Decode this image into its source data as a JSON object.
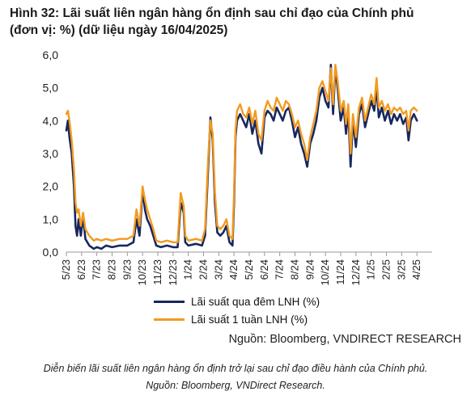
{
  "title_line1": "Hình 32: Lãi suất liên ngân hàng ổn định sau chỉ đạo của Chính phủ",
  "title_line2": "(đơn vị: %) (dữ liệu ngày 16/04/2025)",
  "source_text": "Nguồn: Bloomberg, VNDIRECT RESEARCH",
  "caption_line1": "Diễn biến lãi suất liên ngân hàng ổn định trở lại sau chỉ đạo điều hành của Chính phủ.",
  "caption_line2": "Nguồn: Bloomberg, VNDirect Research.",
  "colors": {
    "series1": "#17275e",
    "series2": "#f39a1f",
    "axis": "#999999"
  },
  "chart_data": {
    "type": "line",
    "ylim": [
      0,
      6
    ],
    "yticks": [
      "0,0",
      "1,0",
      "2,0",
      "3,0",
      "4,0",
      "5,0",
      "6,0"
    ],
    "xlim": [
      0,
      24
    ],
    "xticks": [
      "5/23",
      "6/23",
      "7/23",
      "8/23",
      "9/23",
      "10/23",
      "11/23",
      "12/23",
      "1/24",
      "2/24",
      "3/24",
      "4/24",
      "5/24",
      "6/24",
      "7/24",
      "8/24",
      "9/24",
      "10/24",
      "11/24",
      "12/24",
      "1/25",
      "2/25",
      "3/25",
      "4/25"
    ],
    "series": [
      {
        "name": "Lãi suất qua đêm LNH (%)",
        "color": "#17275e",
        "points": [
          [
            0,
            3.7
          ],
          [
            0.1,
            4.0
          ],
          [
            0.2,
            3.5
          ],
          [
            0.35,
            3.0
          ],
          [
            0.5,
            2.0
          ],
          [
            0.6,
            0.8
          ],
          [
            0.7,
            0.5
          ],
          [
            0.8,
            1.0
          ],
          [
            0.95,
            0.5
          ],
          [
            1.1,
            1.1
          ],
          [
            1.25,
            0.4
          ],
          [
            1.5,
            0.2
          ],
          [
            1.8,
            0.1
          ],
          [
            2.0,
            0.15
          ],
          [
            2.3,
            0.1
          ],
          [
            2.6,
            0.2
          ],
          [
            3.0,
            0.15
          ],
          [
            3.5,
            0.2
          ],
          [
            4.0,
            0.2
          ],
          [
            4.4,
            0.3
          ],
          [
            4.6,
            1.0
          ],
          [
            4.8,
            0.5
          ],
          [
            5.0,
            1.9
          ],
          [
            5.15,
            1.3
          ],
          [
            5.3,
            1.0
          ],
          [
            5.5,
            0.8
          ],
          [
            5.7,
            0.5
          ],
          [
            5.9,
            0.2
          ],
          [
            6.2,
            0.15
          ],
          [
            6.6,
            0.2
          ],
          [
            7.0,
            0.15
          ],
          [
            7.3,
            0.15
          ],
          [
            7.5,
            1.5
          ],
          [
            7.7,
            1.2
          ],
          [
            7.8,
            0.3
          ],
          [
            8.0,
            0.2
          ],
          [
            8.5,
            0.25
          ],
          [
            8.9,
            0.2
          ],
          [
            9.1,
            0.5
          ],
          [
            9.3,
            2.5
          ],
          [
            9.45,
            4.1
          ],
          [
            9.6,
            3.4
          ],
          [
            9.75,
            1.5
          ],
          [
            9.9,
            0.6
          ],
          [
            10.1,
            0.5
          ],
          [
            10.3,
            0.6
          ],
          [
            10.5,
            0.8
          ],
          [
            10.7,
            0.3
          ],
          [
            10.9,
            0.2
          ],
          [
            11.0,
            1.5
          ],
          [
            11.1,
            3.5
          ],
          [
            11.2,
            4.0
          ],
          [
            11.4,
            4.2
          ],
          [
            11.6,
            4.0
          ],
          [
            11.8,
            3.8
          ],
          [
            12.0,
            4.2
          ],
          [
            12.2,
            3.6
          ],
          [
            12.4,
            4.0
          ],
          [
            12.6,
            3.3
          ],
          [
            12.8,
            3.0
          ],
          [
            13.0,
            4.1
          ],
          [
            13.2,
            4.3
          ],
          [
            13.4,
            4.2
          ],
          [
            13.6,
            4.0
          ],
          [
            13.8,
            4.4
          ],
          [
            14.0,
            4.2
          ],
          [
            14.2,
            4.0
          ],
          [
            14.4,
            4.3
          ],
          [
            14.6,
            4.4
          ],
          [
            14.8,
            4.0
          ],
          [
            15.0,
            3.5
          ],
          [
            15.2,
            3.8
          ],
          [
            15.4,
            3.3
          ],
          [
            15.6,
            3.0
          ],
          [
            15.8,
            2.6
          ],
          [
            16.0,
            3.3
          ],
          [
            16.2,
            3.6
          ],
          [
            16.4,
            4.0
          ],
          [
            16.6,
            4.7
          ],
          [
            16.8,
            5.0
          ],
          [
            17.0,
            4.6
          ],
          [
            17.2,
            4.4
          ],
          [
            17.35,
            5.7
          ],
          [
            17.5,
            4.2
          ],
          [
            17.65,
            5.6
          ],
          [
            17.8,
            5.0
          ],
          [
            18.0,
            4.0
          ],
          [
            18.2,
            4.4
          ],
          [
            18.35,
            3.6
          ],
          [
            18.5,
            4.3
          ],
          [
            18.65,
            2.6
          ],
          [
            18.8,
            4.0
          ],
          [
            19.0,
            3.2
          ],
          [
            19.2,
            4.2
          ],
          [
            19.4,
            4.5
          ],
          [
            19.6,
            3.8
          ],
          [
            19.8,
            4.2
          ],
          [
            20.0,
            4.6
          ],
          [
            20.2,
            4.3
          ],
          [
            20.35,
            5.0
          ],
          [
            20.5,
            4.1
          ],
          [
            20.7,
            4.4
          ],
          [
            20.9,
            4.0
          ],
          [
            21.1,
            4.3
          ],
          [
            21.3,
            3.9
          ],
          [
            21.5,
            4.2
          ],
          [
            21.7,
            4.0
          ],
          [
            21.9,
            4.2
          ],
          [
            22.1,
            3.9
          ],
          [
            22.3,
            4.1
          ],
          [
            22.45,
            3.4
          ],
          [
            22.6,
            4.0
          ],
          [
            22.8,
            4.2
          ],
          [
            23.0,
            4.0
          ]
        ]
      },
      {
        "name": "Lãi suất 1 tuần LNH (%)",
        "color": "#f39a1f",
        "points": [
          [
            0,
            4.2
          ],
          [
            0.1,
            4.3
          ],
          [
            0.2,
            4.0
          ],
          [
            0.35,
            3.4
          ],
          [
            0.5,
            2.5
          ],
          [
            0.6,
            1.5
          ],
          [
            0.7,
            1.2
          ],
          [
            0.8,
            1.3
          ],
          [
            0.95,
            0.8
          ],
          [
            1.1,
            1.2
          ],
          [
            1.25,
            0.7
          ],
          [
            1.5,
            0.5
          ],
          [
            1.8,
            0.35
          ],
          [
            2.0,
            0.4
          ],
          [
            2.3,
            0.35
          ],
          [
            2.6,
            0.4
          ],
          [
            3.0,
            0.35
          ],
          [
            3.5,
            0.4
          ],
          [
            4.0,
            0.4
          ],
          [
            4.4,
            0.5
          ],
          [
            4.6,
            1.3
          ],
          [
            4.8,
            0.8
          ],
          [
            5.0,
            2.0
          ],
          [
            5.15,
            1.6
          ],
          [
            5.3,
            1.3
          ],
          [
            5.5,
            1.0
          ],
          [
            5.7,
            0.7
          ],
          [
            5.9,
            0.35
          ],
          [
            6.2,
            0.3
          ],
          [
            6.6,
            0.35
          ],
          [
            7.0,
            0.3
          ],
          [
            7.3,
            0.3
          ],
          [
            7.5,
            1.8
          ],
          [
            7.7,
            1.4
          ],
          [
            7.8,
            0.5
          ],
          [
            8.0,
            0.35
          ],
          [
            8.5,
            0.4
          ],
          [
            8.9,
            0.35
          ],
          [
            9.1,
            0.7
          ],
          [
            9.3,
            2.8
          ],
          [
            9.45,
            4.0
          ],
          [
            9.6,
            3.6
          ],
          [
            9.75,
            1.8
          ],
          [
            9.9,
            0.8
          ],
          [
            10.1,
            0.7
          ],
          [
            10.3,
            0.8
          ],
          [
            10.5,
            1.0
          ],
          [
            10.7,
            0.5
          ],
          [
            10.9,
            0.4
          ],
          [
            11.0,
            1.8
          ],
          [
            11.1,
            3.7
          ],
          [
            11.2,
            4.3
          ],
          [
            11.4,
            4.5
          ],
          [
            11.6,
            4.2
          ],
          [
            11.8,
            4.1
          ],
          [
            12.0,
            4.4
          ],
          [
            12.2,
            3.9
          ],
          [
            12.4,
            4.3
          ],
          [
            12.6,
            3.6
          ],
          [
            12.8,
            3.4
          ],
          [
            13.0,
            4.3
          ],
          [
            13.2,
            4.6
          ],
          [
            13.4,
            4.4
          ],
          [
            13.6,
            4.3
          ],
          [
            13.8,
            4.7
          ],
          [
            14.0,
            4.5
          ],
          [
            14.2,
            4.3
          ],
          [
            14.4,
            4.6
          ],
          [
            14.6,
            4.5
          ],
          [
            14.8,
            4.2
          ],
          [
            15.0,
            3.8
          ],
          [
            15.2,
            4.0
          ],
          [
            15.4,
            3.6
          ],
          [
            15.6,
            3.3
          ],
          [
            15.8,
            2.8
          ],
          [
            16.0,
            3.5
          ],
          [
            16.2,
            3.9
          ],
          [
            16.4,
            4.3
          ],
          [
            16.6,
            5.0
          ],
          [
            16.8,
            5.2
          ],
          [
            17.0,
            4.9
          ],
          [
            17.2,
            4.6
          ],
          [
            17.35,
            5.6
          ],
          [
            17.5,
            4.5
          ],
          [
            17.65,
            5.7
          ],
          [
            17.8,
            5.2
          ],
          [
            18.0,
            4.3
          ],
          [
            18.2,
            4.6
          ],
          [
            18.35,
            3.9
          ],
          [
            18.5,
            4.5
          ],
          [
            18.65,
            3.0
          ],
          [
            18.8,
            4.2
          ],
          [
            19.0,
            3.5
          ],
          [
            19.2,
            4.4
          ],
          [
            19.4,
            4.7
          ],
          [
            19.6,
            4.0
          ],
          [
            19.8,
            4.4
          ],
          [
            20.0,
            4.8
          ],
          [
            20.2,
            4.5
          ],
          [
            20.35,
            5.3
          ],
          [
            20.5,
            4.4
          ],
          [
            20.7,
            4.6
          ],
          [
            20.9,
            4.3
          ],
          [
            21.1,
            4.5
          ],
          [
            21.3,
            4.2
          ],
          [
            21.5,
            4.4
          ],
          [
            21.7,
            4.3
          ],
          [
            21.9,
            4.4
          ],
          [
            22.1,
            4.2
          ],
          [
            22.3,
            4.3
          ],
          [
            22.45,
            3.7
          ],
          [
            22.6,
            4.3
          ],
          [
            22.8,
            4.4
          ],
          [
            23.0,
            4.3
          ]
        ]
      }
    ]
  }
}
